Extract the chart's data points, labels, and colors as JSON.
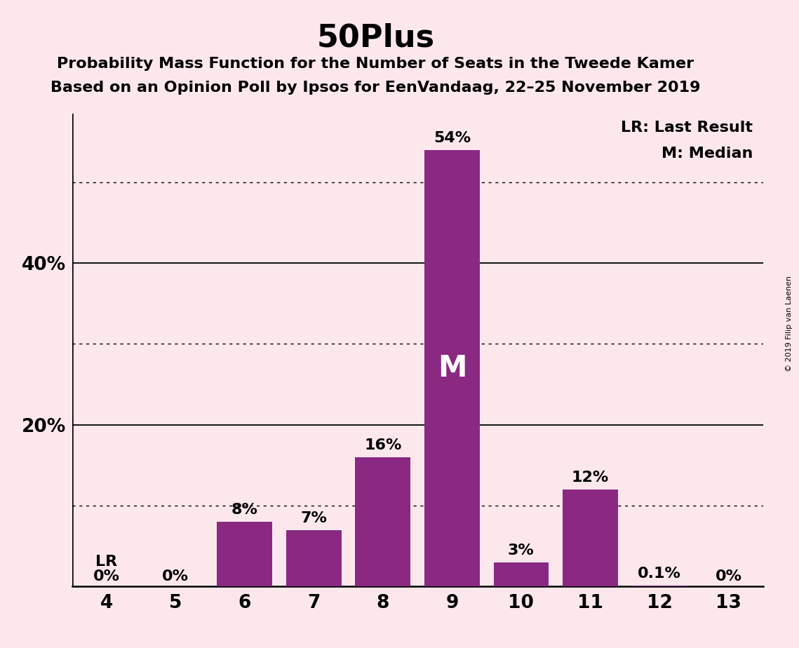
{
  "title": "50Plus",
  "subtitle1": "Probability Mass Function for the Number of Seats in the Tweede Kamer",
  "subtitle2": "Based on an Opinion Poll by Ipsos for EenVandaag, 22–25 November 2019",
  "copyright_text": "© 2019 Filip van Laenen",
  "seats": [
    4,
    5,
    6,
    7,
    8,
    9,
    10,
    11,
    12,
    13
  ],
  "probabilities": [
    0.0,
    0.0,
    0.08,
    0.07,
    0.16,
    0.54,
    0.03,
    0.12,
    0.001,
    0.0
  ],
  "bar_labels": [
    "0%",
    "0%",
    "8%",
    "7%",
    "16%",
    "54%",
    "3%",
    "12%",
    "0.1%",
    "0%"
  ],
  "bar_color": "#8B2882",
  "background_color": "#fce8ec",
  "last_result_seat": 4,
  "median_seat": 9,
  "ylim_max": 0.585,
  "solid_yticks": [
    0.2,
    0.4
  ],
  "dotted_yticks": [
    0.1,
    0.3,
    0.5
  ],
  "legend_lr": "LR: Last Result",
  "legend_m": "M: Median",
  "title_fontsize": 32,
  "subtitle_fontsize": 16,
  "label_fontsize": 16,
  "tick_fontsize": 19,
  "median_label_fontsize": 30
}
